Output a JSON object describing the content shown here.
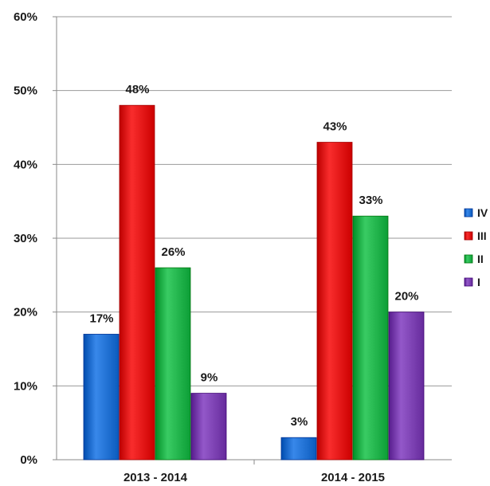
{
  "chart_data": {
    "type": "bar",
    "categories": [
      "2013 - 2014",
      "2014 - 2015"
    ],
    "series": [
      {
        "name": "IV",
        "values": [
          17,
          3
        ],
        "color": "#1f6fd1"
      },
      {
        "name": "III",
        "values": [
          48,
          43
        ],
        "color": "#e01414"
      },
      {
        "name": "II",
        "values": [
          26,
          33
        ],
        "color": "#20b24a"
      },
      {
        "name": "I",
        "values": [
          9,
          20
        ],
        "color": "#7a3fb0"
      }
    ],
    "data_labels": [
      [
        "17%",
        "3%"
      ],
      [
        "48%",
        "43%"
      ],
      [
        "26%",
        "33%"
      ],
      [
        "9%",
        "20%"
      ]
    ],
    "yticks": [
      0,
      10,
      20,
      30,
      40,
      50,
      60
    ],
    "ytick_labels": [
      "0%",
      "10%",
      "20%",
      "30%",
      "40%",
      "50%",
      "60%"
    ],
    "ylim": [
      0,
      60
    ],
    "grid": true,
    "legend_position": "right",
    "title": "",
    "xlabel": "",
    "ylabel": ""
  }
}
